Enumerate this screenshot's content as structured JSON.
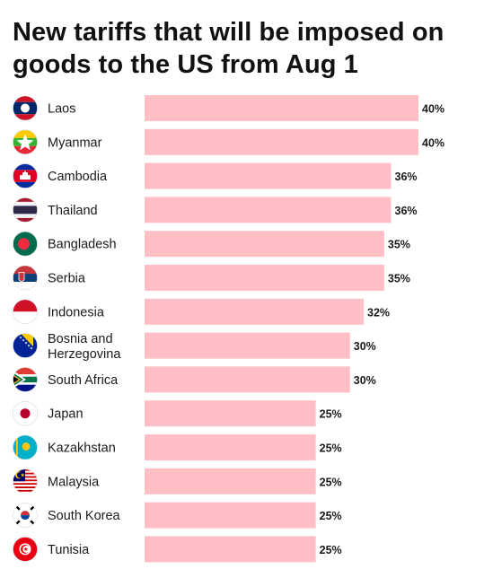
{
  "chart_data": {
    "type": "bar",
    "orientation": "horizontal",
    "title": "New tariffs that will be imposed on goods to the US from Aug 1",
    "categories": [
      "Laos",
      "Myanmar",
      "Cambodia",
      "Thailand",
      "Bangladesh",
      "Serbia",
      "Indonesia",
      "Bosnia and Herzegovina",
      "South Africa",
      "Japan",
      "Kazakhstan",
      "Malaysia",
      "South Korea",
      "Tunisia"
    ],
    "category_lines": [
      [
        "Laos"
      ],
      [
        "Myanmar"
      ],
      [
        "Cambodia"
      ],
      [
        "Thailand"
      ],
      [
        "Bangladesh"
      ],
      [
        "Serbia"
      ],
      [
        "Indonesia"
      ],
      [
        "Bosnia and",
        "Herzegovina"
      ],
      [
        "South Africa"
      ],
      [
        "Japan"
      ],
      [
        "Kazakhstan"
      ],
      [
        "Malaysia"
      ],
      [
        "South Korea"
      ],
      [
        "Tunisia"
      ]
    ],
    "values": [
      40,
      40,
      36,
      36,
      35,
      35,
      32,
      30,
      30,
      25,
      25,
      25,
      25,
      25
    ],
    "value_labels": [
      "40%",
      "40%",
      "36%",
      "36%",
      "35%",
      "35%",
      "32%",
      "30%",
      "30%",
      "25%",
      "25%",
      "25%",
      "25%",
      "25%"
    ],
    "flag_icons": [
      "laos-flag-icon",
      "myanmar-flag-icon",
      "cambodia-flag-icon",
      "thailand-flag-icon",
      "bangladesh-flag-icon",
      "serbia-flag-icon",
      "indonesia-flag-icon",
      "bosnia-flag-icon",
      "south-africa-flag-icon",
      "japan-flag-icon",
      "kazakhstan-flag-icon",
      "malaysia-flag-icon",
      "south-korea-flag-icon",
      "tunisia-flag-icon"
    ],
    "xlim": [
      0,
      40
    ],
    "grid": false,
    "legend": "none",
    "xlabel": "",
    "ylabel": "",
    "bar_color": "#ffbfc5"
  }
}
